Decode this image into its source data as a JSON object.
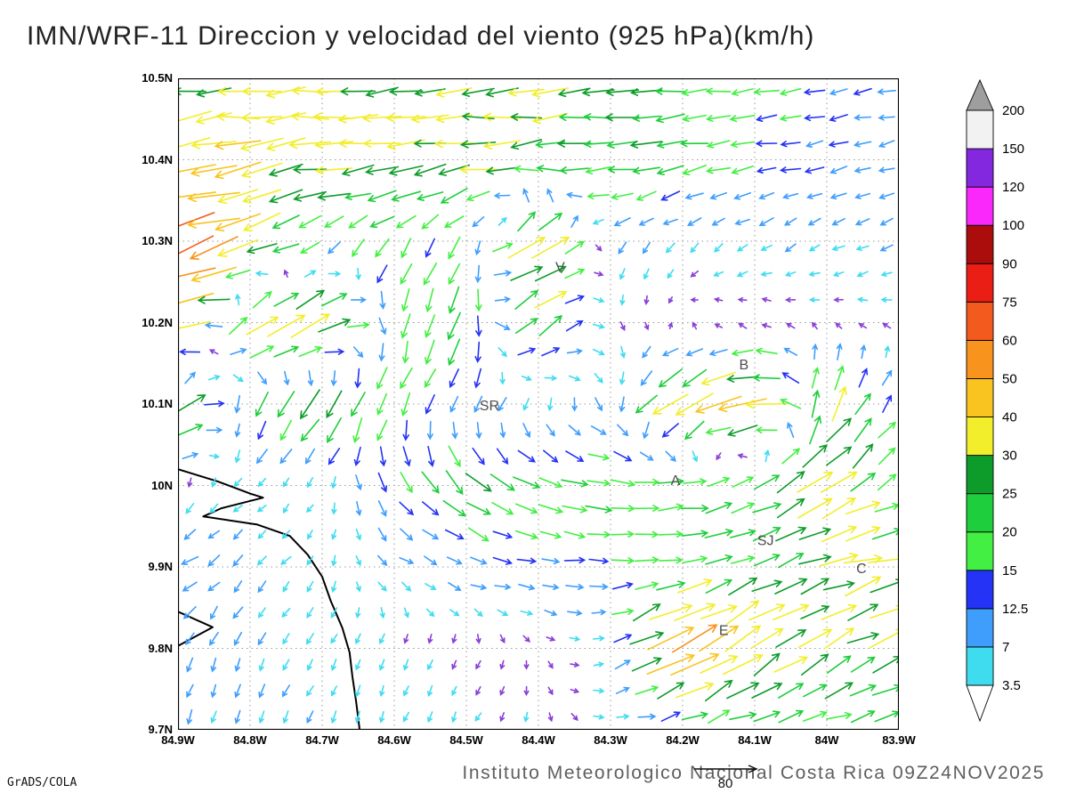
{
  "title": "IMN/WRF-11 Direccion y velocidad del viento (925 hPa)(km/h)",
  "footer": {
    "text": "Instituto Meteorologico Nacional Costa Rica 09Z24NOV2025"
  },
  "credit": "GrADS/COLA",
  "ref_vector": {
    "label": "80"
  },
  "chart_data": {
    "type": "quiver",
    "title": "IMN/WRF-11 Direccion y velocidad del viento (925 hPa)(km/h)",
    "units": "km/h",
    "level": "925 hPa",
    "valid_time": "09Z24NOV2025",
    "x_ticks": [
      "84.9W",
      "84.8W",
      "84.7W",
      "84.6W",
      "84.5W",
      "84.4W",
      "84.3W",
      "84.2W",
      "84.1W",
      "84W",
      "83.9W"
    ],
    "y_ticks": [
      "10.5N",
      "10.4N",
      "10.3N",
      "10.2N",
      "10.1N",
      "10N",
      "9.9N",
      "9.8N",
      "9.7N"
    ],
    "lon_range": [
      -84.9,
      -83.9
    ],
    "lat_range": [
      9.7,
      10.5
    ],
    "grid_step": 0.1,
    "grid_on": true,
    "colorbar": {
      "levels": [
        3.5,
        7,
        12.5,
        15,
        20,
        25,
        30,
        40,
        50,
        60,
        75,
        90,
        100,
        120,
        150,
        200
      ],
      "labels": [
        "3.5",
        "7",
        "12.5",
        "15",
        "20",
        "25",
        "30",
        "40",
        "50",
        "60",
        "75",
        "90",
        "100",
        "120",
        "150",
        "200"
      ],
      "colors": [
        "#3fdcf0",
        "#3f9efc",
        "#2433f5",
        "#43ef43",
        "#1fce3c",
        "#0d9c2a",
        "#f2ee2c",
        "#f9c41f",
        "#f8931d",
        "#f25b1d",
        "#ea1e15",
        "#ab0d0d",
        "#fa28fa",
        "#8428e0",
        "#f2f2f2"
      ],
      "under_color": "#ffffff",
      "over_color": "#9e9e9e",
      "arrow_calm_color": "#8a3fd6"
    },
    "stations": [
      {
        "label": "V",
        "lon": -84.37,
        "lat": 10.268
      },
      {
        "label": "SR",
        "lon": -84.468,
        "lat": 10.098
      },
      {
        "label": "B",
        "lon": -84.115,
        "lat": 10.148
      },
      {
        "label": "A",
        "lon": -84.21,
        "lat": 10.006
      },
      {
        "label": "SJ",
        "lon": -84.085,
        "lat": 9.932
      },
      {
        "label": "C",
        "lon": -83.952,
        "lat": 9.898
      },
      {
        "label": "E",
        "lon": -84.143,
        "lat": 9.822
      }
    ],
    "coastline": {
      "main": [
        [
          -84.9,
          10.02
        ],
        [
          -84.845,
          10.005
        ],
        [
          -84.8,
          9.99
        ],
        [
          -84.782,
          9.985
        ],
        [
          -84.84,
          9.972
        ],
        [
          -84.865,
          9.962
        ],
        [
          -84.79,
          9.952
        ],
        [
          -84.745,
          9.938
        ],
        [
          -84.72,
          9.915
        ],
        [
          -84.7,
          9.888
        ],
        [
          -84.688,
          9.858
        ],
        [
          -84.672,
          9.825
        ],
        [
          -84.662,
          9.795
        ],
        [
          -84.658,
          9.765
        ],
        [
          -84.653,
          9.735
        ],
        [
          -84.648,
          9.7
        ]
      ],
      "peninsula": [
        [
          -84.9,
          9.845
        ],
        [
          -84.852,
          9.826
        ],
        [
          -84.9,
          9.803
        ]
      ]
    },
    "wind_grid": {
      "units": "km/h",
      "lons": [
        -84.9,
        -84.8,
        -84.7,
        -84.6,
        -84.5,
        -84.4,
        -84.3,
        -84.2,
        -84.1,
        -84.0,
        -83.9
      ],
      "lats": [
        10.5,
        10.4,
        10.3,
        10.2,
        10.1,
        10.0,
        9.9,
        9.8,
        9.7
      ],
      "uv": [
        [
          [
            -28,
            -3
          ],
          [
            -30,
            -2
          ],
          [
            -30,
            -2
          ],
          [
            -30,
            -2
          ],
          [
            -28,
            -2
          ],
          [
            -28,
            -2
          ],
          [
            -26,
            -2
          ],
          [
            -22,
            -2
          ],
          [
            -18,
            -2
          ],
          [
            -14,
            -2
          ],
          [
            -12,
            -2
          ]
        ],
        [
          [
            -45,
            -8
          ],
          [
            -38,
            -5
          ],
          [
            -32,
            -3
          ],
          [
            -30,
            -3
          ],
          [
            -30,
            -3
          ],
          [
            -28,
            -3
          ],
          [
            -25,
            -3
          ],
          [
            -20,
            -3
          ],
          [
            -15,
            -3
          ],
          [
            -12,
            -3
          ],
          [
            -10,
            -2
          ]
        ],
        [
          [
            -70,
            -22
          ],
          [
            -35,
            -12
          ],
          [
            -12,
            -10
          ],
          [
            -10,
            -12
          ],
          [
            -8,
            -14
          ],
          [
            35,
            25
          ],
          [
            -6,
            -7
          ],
          [
            -5,
            -5
          ],
          [
            -6,
            -4
          ],
          [
            -6,
            -3
          ],
          [
            -7,
            -3
          ]
        ],
        [
          [
            -55,
            -18
          ],
          [
            30,
            18
          ],
          [
            38,
            22
          ],
          [
            -4,
            -18
          ],
          [
            -7,
            -24
          ],
          [
            25,
            18
          ],
          [
            2,
            -4
          ],
          [
            1,
            2
          ],
          [
            -2,
            2
          ],
          [
            -2,
            1
          ],
          [
            -3,
            1
          ]
        ],
        [
          [
            36,
            24
          ],
          [
            -8,
            -18
          ],
          [
            -16,
            -24
          ],
          [
            -8,
            -16
          ],
          [
            -6,
            -10
          ],
          [
            -3,
            -6
          ],
          [
            4,
            -8
          ],
          [
            -32,
            -20
          ],
          [
            -44,
            -8
          ],
          [
            14,
            28
          ],
          [
            6,
            10
          ]
        ],
        [
          [
            -2,
            -4
          ],
          [
            -3,
            -3
          ],
          [
            -2,
            -3
          ],
          [
            8,
            -14
          ],
          [
            18,
            -16
          ],
          [
            20,
            -8
          ],
          [
            20,
            -3
          ],
          [
            22,
            2
          ],
          [
            18,
            9
          ],
          [
            30,
            18
          ],
          [
            12,
            7
          ]
        ],
        [
          [
            -11,
            -7
          ],
          [
            -5,
            -5
          ],
          [
            -3,
            -4
          ],
          [
            7,
            -4
          ],
          [
            11,
            -3
          ],
          [
            13,
            -2
          ],
          [
            15,
            0
          ],
          [
            17,
            4
          ],
          [
            20,
            9
          ],
          [
            28,
            11
          ],
          [
            38,
            8
          ]
        ],
        [
          [
            -4,
            -9
          ],
          [
            -3,
            -7
          ],
          [
            -3,
            -5
          ],
          [
            -2,
            -4
          ],
          [
            -2,
            -3
          ],
          [
            1,
            -2
          ],
          [
            4,
            2
          ],
          [
            52,
            30
          ],
          [
            30,
            20
          ],
          [
            23,
            14
          ],
          [
            26,
            11
          ]
        ],
        [
          [
            -3,
            -7
          ],
          [
            -3,
            -7
          ],
          [
            -2,
            -6
          ],
          [
            -2,
            -5
          ],
          [
            -2,
            -4
          ],
          [
            -1,
            -3
          ],
          [
            6,
            -2
          ],
          [
            10,
            2
          ],
          [
            16,
            5
          ],
          [
            20,
            5
          ],
          [
            22,
            5
          ]
        ]
      ]
    }
  }
}
